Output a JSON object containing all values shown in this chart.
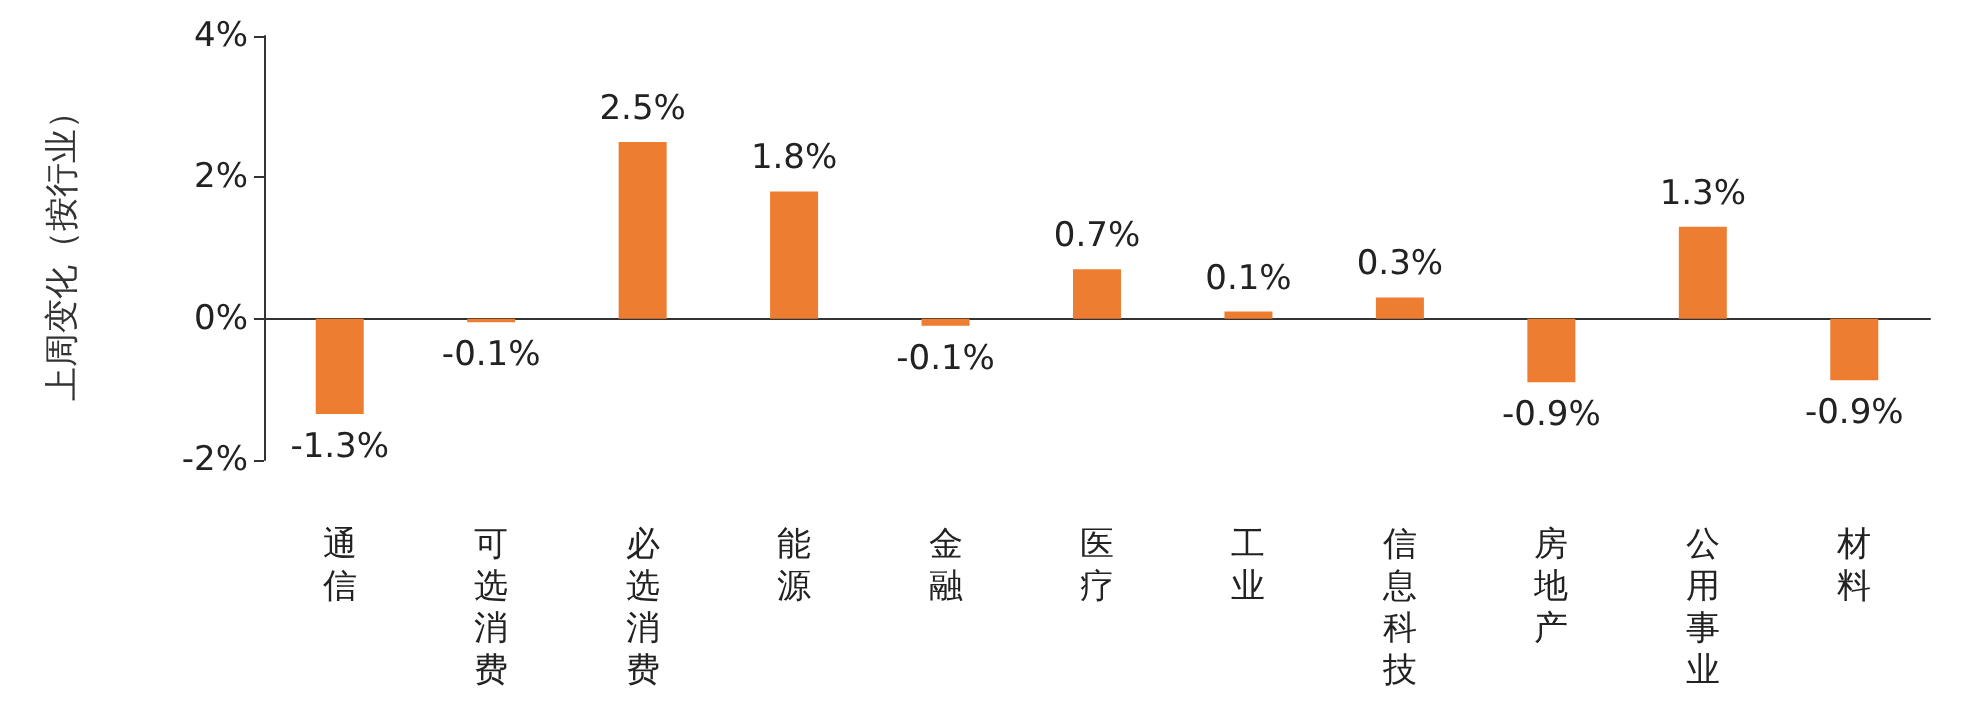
{
  "chart_data": {
    "type": "bar",
    "ylabel": "上周变化（按行业）",
    "categories": [
      "通信",
      "可选消费",
      "必选消费",
      "能源",
      "金融",
      "医疗",
      "工业",
      "信息科技",
      "房地产",
      "公用事业",
      "材料"
    ],
    "series": [
      {
        "color": "#ed7d31",
        "values": [
          -1.35,
          -0.05,
          2.5,
          1.8,
          -0.1,
          0.7,
          0.1,
          0.3,
          -0.9,
          1.3,
          -0.87
        ],
        "value_labels": [
          "-1.3%",
          "-0.1%",
          "2.5%",
          "1.8%",
          "-0.1%",
          "0.7%",
          "0.1%",
          "0.3%",
          "-0.9%",
          "1.3%",
          "-0.9%"
        ]
      }
    ],
    "ylim": [
      -2,
      4
    ],
    "yticks": [
      {
        "value": -2,
        "label": "-2%"
      },
      {
        "value": 0,
        "label": "0%"
      },
      {
        "value": 2,
        "label": "2%"
      },
      {
        "value": 4,
        "label": "4%"
      }
    ]
  }
}
